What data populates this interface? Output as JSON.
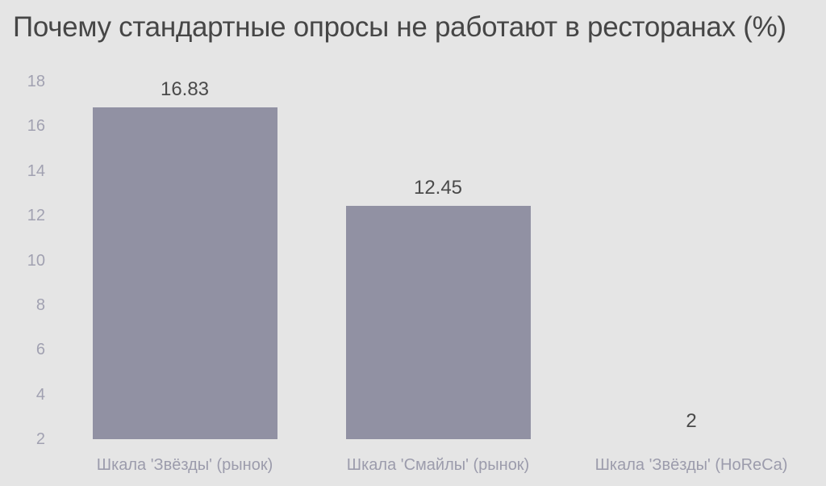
{
  "colors": {
    "background": "#e5e5e5",
    "bar": "#9191a3",
    "title": "#464646",
    "value_label": "#4a4a4a",
    "tick_label": "#a1a1b1",
    "category_label": "#9c9cac"
  },
  "chart_data": {
    "type": "bar",
    "title": "Почему стандартные опросы не работают в ресторанах (%)",
    "categories": [
      "Шкала 'Звёзды' (рынок)",
      "Шкала 'Смайлы' (рынок)",
      "Шкала 'Звёзды' (HoReCa)"
    ],
    "values": [
      16.83,
      12.45,
      2
    ],
    "value_labels": [
      "16.83",
      "12.45",
      "2"
    ],
    "xlabel": "",
    "ylabel": "",
    "ylim": [
      2,
      18
    ],
    "yticks": [
      2,
      4,
      6,
      8,
      10,
      12,
      14,
      16,
      18
    ],
    "grid": false,
    "legend": "none",
    "baseline_value": 2,
    "bar_width_fraction": 0.73
  }
}
